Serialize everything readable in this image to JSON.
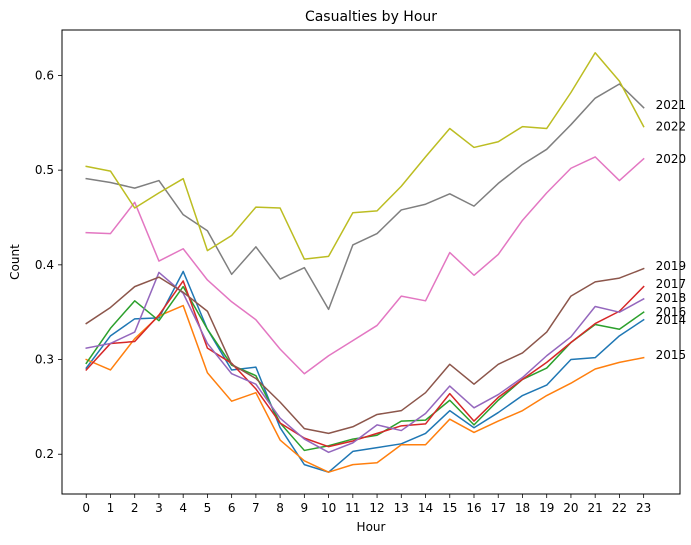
{
  "chart_data": {
    "type": "line",
    "title": "Casualties by Hour",
    "xlabel": "Hour",
    "ylabel": "Count",
    "x": [
      0,
      1,
      2,
      3,
      4,
      5,
      6,
      7,
      8,
      9,
      10,
      11,
      12,
      13,
      14,
      15,
      16,
      17,
      18,
      19,
      20,
      21,
      22,
      23
    ],
    "xlim": [
      -1,
      24.5
    ],
    "ylim": [
      0.158,
      0.648
    ],
    "yticks": [
      0.2,
      0.3,
      0.4,
      0.5,
      0.6
    ],
    "ytick_labels": [
      "0.2",
      "0.3",
      "0.4",
      "0.5",
      "0.6"
    ],
    "grid": false,
    "legend": "inline labels at line ends (right side)",
    "series": [
      {
        "name": "2014",
        "color": "#1f77b4",
        "values": [
          0.291,
          0.325,
          0.343,
          0.344,
          0.393,
          0.332,
          0.289,
          0.292,
          0.228,
          0.189,
          0.181,
          0.203,
          0.207,
          0.211,
          0.222,
          0.246,
          0.228,
          0.244,
          0.262,
          0.273,
          0.3,
          0.302,
          0.325,
          0.342
        ]
      },
      {
        "name": "2015",
        "color": "#ff7f0e",
        "values": [
          0.3,
          0.289,
          0.322,
          0.346,
          0.357,
          0.286,
          0.256,
          0.265,
          0.215,
          0.193,
          0.181,
          0.189,
          0.191,
          0.21,
          0.21,
          0.237,
          0.223,
          0.235,
          0.246,
          0.262,
          0.275,
          0.29,
          0.297,
          0.302
        ]
      },
      {
        "name": "2016",
        "color": "#2ca02c",
        "values": [
          0.296,
          0.333,
          0.362,
          0.341,
          0.377,
          0.332,
          0.294,
          0.283,
          0.233,
          0.204,
          0.209,
          0.216,
          0.22,
          0.235,
          0.236,
          0.257,
          0.231,
          0.257,
          0.279,
          0.291,
          0.318,
          0.337,
          0.332,
          0.35
        ]
      },
      {
        "name": "2017",
        "color": "#d62728",
        "values": [
          0.289,
          0.317,
          0.319,
          0.347,
          0.383,
          0.312,
          0.296,
          0.269,
          0.233,
          0.217,
          0.208,
          0.214,
          0.222,
          0.23,
          0.232,
          0.264,
          0.235,
          0.26,
          0.279,
          0.297,
          0.318,
          0.338,
          0.351,
          0.377
        ]
      },
      {
        "name": "2018",
        "color": "#9467bd",
        "values": [
          0.312,
          0.317,
          0.329,
          0.392,
          0.37,
          0.317,
          0.285,
          0.274,
          0.238,
          0.216,
          0.202,
          0.212,
          0.231,
          0.225,
          0.243,
          0.272,
          0.249,
          0.263,
          0.281,
          0.304,
          0.324,
          0.356,
          0.35,
          0.364
        ]
      },
      {
        "name": "2019",
        "color": "#8c564b",
        "values": [
          0.338,
          0.355,
          0.377,
          0.387,
          0.371,
          0.351,
          0.295,
          0.28,
          0.255,
          0.227,
          0.222,
          0.229,
          0.242,
          0.246,
          0.265,
          0.295,
          0.274,
          0.295,
          0.307,
          0.329,
          0.367,
          0.382,
          0.386,
          0.396
        ]
      },
      {
        "name": "2020",
        "color": "#e377c2",
        "values": [
          0.434,
          0.433,
          0.466,
          0.404,
          0.417,
          0.384,
          0.361,
          0.342,
          0.311,
          0.285,
          0.304,
          0.32,
          0.336,
          0.367,
          0.362,
          0.413,
          0.389,
          0.411,
          0.447,
          0.476,
          0.502,
          0.514,
          0.489,
          0.512
        ]
      },
      {
        "name": "2021",
        "color": "#7f7f7f",
        "values": [
          0.491,
          0.487,
          0.481,
          0.489,
          0.453,
          0.436,
          0.39,
          0.419,
          0.385,
          0.397,
          0.353,
          0.421,
          0.433,
          0.458,
          0.464,
          0.475,
          0.462,
          0.486,
          0.506,
          0.522,
          0.548,
          0.576,
          0.591,
          0.566
        ]
      },
      {
        "name": "2022",
        "color": "#bcbd22",
        "values": [
          0.504,
          0.499,
          0.46,
          0.476,
          0.491,
          0.415,
          0.431,
          0.461,
          0.46,
          0.406,
          0.409,
          0.455,
          0.457,
          0.483,
          0.514,
          0.544,
          0.524,
          0.53,
          0.546,
          0.544,
          0.582,
          0.624,
          0.594,
          0.546
        ]
      }
    ],
    "end_labels": [
      {
        "text": "2021",
        "y": 0.569
      },
      {
        "text": "2022",
        "y": 0.546
      },
      {
        "text": "2020",
        "y": 0.512
      },
      {
        "text": "2019",
        "y": 0.399
      },
      {
        "text": "2017",
        "y": 0.38
      },
      {
        "text": "2018",
        "y": 0.365
      },
      {
        "text": "2016",
        "y": 0.35
      },
      {
        "text": "2014",
        "y": 0.342
      },
      {
        "text": "2015",
        "y": 0.305
      }
    ]
  }
}
